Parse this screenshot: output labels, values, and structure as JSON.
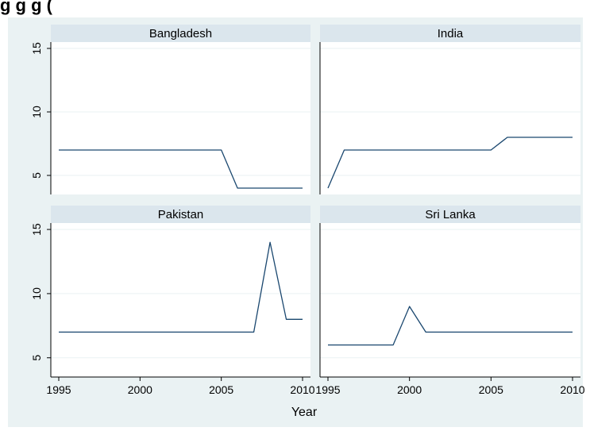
{
  "page_title_partial": "g                                    g        g     (",
  "chart_data": {
    "type": "line",
    "layout": "small-multiples 2x2",
    "title": "",
    "xlabel": "Year",
    "ylabel": "",
    "xlim": [
      1995,
      2010
    ],
    "ylim": [
      3.5,
      15.5
    ],
    "x_ticks": [
      1995,
      2000,
      2005,
      2010
    ],
    "y_ticks": [
      5,
      10,
      15
    ],
    "grid": true,
    "line_color": "#1a476f",
    "panel_header_bg": "#dbe6ed",
    "background": "#eaf2f3",
    "panels": [
      {
        "name": "Bangladesh",
        "x": [
          1995,
          1996,
          1997,
          1998,
          1999,
          2000,
          2001,
          2002,
          2003,
          2004,
          2005,
          2006,
          2007,
          2008,
          2009,
          2010
        ],
        "y": [
          7,
          7,
          7,
          7,
          7,
          7,
          7,
          7,
          7,
          7,
          7,
          4,
          4,
          4,
          4,
          4
        ]
      },
      {
        "name": "India",
        "x": [
          1995,
          1996,
          1997,
          1998,
          1999,
          2000,
          2001,
          2002,
          2003,
          2004,
          2005,
          2006,
          2007,
          2008,
          2009,
          2010
        ],
        "y": [
          4,
          7,
          7,
          7,
          7,
          7,
          7,
          7,
          7,
          7,
          7,
          8,
          8,
          8,
          8,
          8
        ]
      },
      {
        "name": "Pakistan",
        "x": [
          1995,
          1996,
          1997,
          1998,
          1999,
          2000,
          2001,
          2002,
          2003,
          2004,
          2005,
          2006,
          2007,
          2008,
          2009,
          2010
        ],
        "y": [
          7,
          7,
          7,
          7,
          7,
          7,
          7,
          7,
          7,
          7,
          7,
          7,
          7,
          14,
          8,
          8
        ]
      },
      {
        "name": "Sri Lanka",
        "x": [
          1995,
          1996,
          1997,
          1998,
          1999,
          2000,
          2001,
          2002,
          2003,
          2004,
          2005,
          2006,
          2007,
          2008,
          2009,
          2010
        ],
        "y": [
          6,
          6,
          6,
          6,
          6,
          9,
          7,
          7,
          7,
          7,
          7,
          7,
          7,
          7,
          7,
          7
        ]
      }
    ]
  }
}
